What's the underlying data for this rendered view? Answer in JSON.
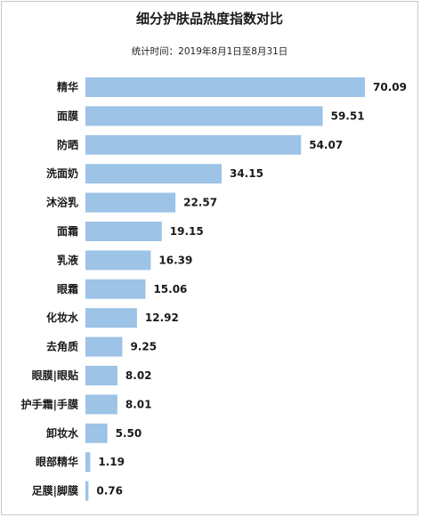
{
  "chart_data": {
    "type": "bar",
    "orientation": "horizontal",
    "title": "细分护肤品热度指数对比",
    "subtitle": "统计时间：2019年8月1日至8月31日",
    "xlabel": "",
    "ylabel": "",
    "grid": false,
    "bar_color": "#9dc3e6",
    "xlim": [
      0,
      70.09
    ],
    "categories": [
      "精华",
      "面膜",
      "防晒",
      "洗面奶",
      "沐浴乳",
      "面霜",
      "乳液",
      "眼霜",
      "化妆水",
      "去角质",
      "眼膜|眼贴",
      "护手霜|手膜",
      "卸妆水",
      "眼部精华",
      "足膜|脚膜"
    ],
    "values": [
      70.09,
      59.51,
      54.07,
      34.15,
      22.57,
      19.15,
      16.39,
      15.06,
      12.92,
      9.25,
      8.02,
      8.01,
      5.5,
      1.19,
      0.76
    ],
    "value_labels": [
      "70.09",
      "59.51",
      "54.07",
      "34.15",
      "22.57",
      "19.15",
      "16.39",
      "15.06",
      "12.92",
      "9.25",
      "8.02",
      "8.01",
      "5.50",
      "1.19",
      "0.76"
    ]
  }
}
